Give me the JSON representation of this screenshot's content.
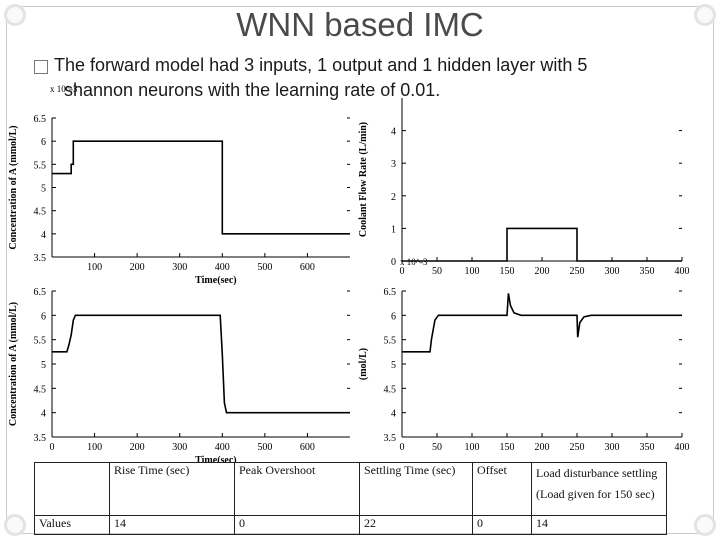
{
  "slide": {
    "title": "WNN based IMC",
    "bullet_line1": "The forward model had 3 inputs, 1 output and 1 hidden layer with 5",
    "bullet_line2": "shannon neurons with the learning rate of 0.01."
  },
  "chart_data": [
    {
      "type": "line",
      "ylabel": "Concentration of A (mmol/L)",
      "xlabel": "Time(sec)",
      "scale_label": "x 10^-3",
      "xlim": [
        0,
        700
      ],
      "ylim": [
        3.5,
        6.5
      ],
      "xticks": [
        100,
        200,
        300,
        400,
        500,
        600
      ],
      "yticks": [
        3.5,
        4,
        4.5,
        5,
        5.5,
        6,
        6.5
      ],
      "series": [
        {
          "x": [
            0,
            45,
            45,
            50,
            50,
            400,
            400,
            700
          ],
          "y": [
            5.3,
            5.3,
            5.5,
            5.5,
            6,
            6,
            4,
            4
          ]
        }
      ]
    },
    {
      "type": "line",
      "ylabel": "Coolant Flow Rate (L/min)",
      "xlabel": "",
      "scale_label": "",
      "xlim": [
        0,
        400
      ],
      "ylim": [
        0,
        5
      ],
      "xticks": [
        0,
        50,
        100,
        150,
        200,
        250,
        300,
        350,
        400
      ],
      "yticks": [
        0,
        1,
        2,
        3,
        4
      ],
      "series": [
        {
          "x": [
            0,
            150,
            150,
            250,
            250,
            400
          ],
          "y": [
            0,
            0,
            1,
            1,
            0,
            0
          ]
        }
      ]
    },
    {
      "type": "line",
      "ylabel": "Concentration of A (mmol/L)",
      "xlabel": "Time(sec)",
      "scale_label": "",
      "xlim": [
        0,
        700
      ],
      "ylim": [
        3.5,
        6.5
      ],
      "xticks": [
        0,
        100,
        200,
        300,
        400,
        500,
        600
      ],
      "yticks": [
        3.5,
        4,
        4.5,
        5,
        5.5,
        6,
        6.5
      ],
      "series": [
        {
          "x": [
            0,
            35,
            40,
            45,
            50,
            55,
            395,
            400,
            405,
            410,
            700
          ],
          "y": [
            5.25,
            5.25,
            5.4,
            5.6,
            5.9,
            6.0,
            6.0,
            5.2,
            4.2,
            4.0,
            4.0
          ]
        }
      ]
    },
    {
      "type": "line",
      "ylabel": "(mol/L)",
      "xlabel": "",
      "scale_label": "x 10^-3",
      "xlim": [
        0,
        400
      ],
      "ylim": [
        3.5,
        6.5
      ],
      "xticks": [
        0,
        50,
        100,
        150,
        200,
        250,
        300,
        350,
        400
      ],
      "yticks": [
        3.5,
        4,
        4.5,
        5,
        5.5,
        6,
        6.5
      ],
      "series": [
        {
          "x": [
            0,
            40,
            42,
            47,
            52,
            150,
            152,
            155,
            160,
            170,
            250,
            251,
            254,
            260,
            270,
            400
          ],
          "y": [
            5.25,
            5.25,
            5.5,
            5.9,
            6.0,
            6.0,
            6.45,
            6.2,
            6.05,
            6.0,
            6.0,
            5.55,
            5.85,
            5.97,
            6.0,
            6.0
          ]
        }
      ]
    }
  ],
  "table": {
    "headers": [
      "",
      "Rise Time (sec)",
      "Peak Overshoot",
      "Settling Time (sec)",
      "Offset",
      "Load disturbance settling (Load given for 150 sec)"
    ],
    "rows": [
      [
        "Values",
        "14",
        "0",
        "22",
        "0",
        "14"
      ]
    ]
  }
}
